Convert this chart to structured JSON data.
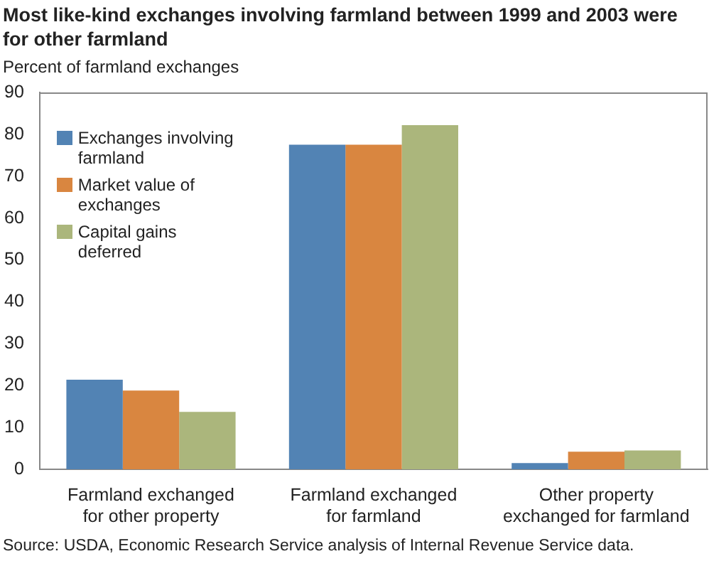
{
  "chart_data": {
    "type": "bar",
    "title": "Most like-kind exchanges involving farmland between 1999 and 2003 were for other farmland",
    "ylabel": "Percent of farmland exchanges",
    "categories": [
      "Farmland exchanged for other property",
      "Farmland exchanged for farmland",
      "Other property exchanged for farmland"
    ],
    "series": [
      {
        "name": "Exchanges involving farmland",
        "color": "#5283b4",
        "values": [
          21.4,
          77.5,
          1.5
        ]
      },
      {
        "name": "Market value of exchanges",
        "color": "#d98640",
        "values": [
          18.8,
          77.5,
          4.2
        ]
      },
      {
        "name": "Capital gains deferred",
        "color": "#abb67c",
        "values": [
          13.7,
          82.2,
          4.5
        ]
      }
    ],
    "ylim": [
      0,
      90
    ],
    "yticks": [
      0,
      10,
      20,
      30,
      40,
      50,
      60,
      70,
      80,
      90
    ],
    "legend": "top left",
    "annotations": [
      "Source: USDA, Economic Research Service analysis of Internal Revenue Service data."
    ]
  }
}
